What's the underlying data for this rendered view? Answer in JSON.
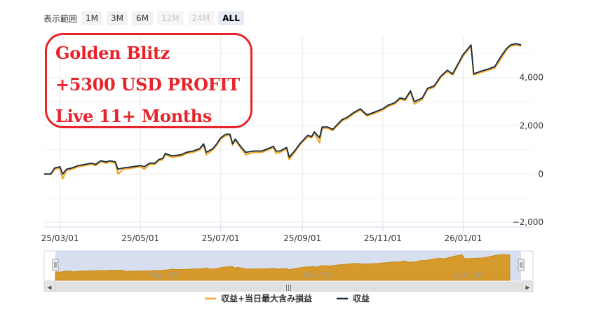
{
  "range_selector": {
    "label": "表示範囲",
    "buttons": [
      {
        "label": "1M",
        "state": "enabled"
      },
      {
        "label": "3M",
        "state": "enabled"
      },
      {
        "label": "6M",
        "state": "enabled"
      },
      {
        "label": "12M",
        "state": "disabled"
      },
      {
        "label": "24M",
        "state": "disabled"
      },
      {
        "label": "ALL",
        "state": "active"
      }
    ]
  },
  "overlay": {
    "lines": [
      "Golden Blitz",
      "+5300 USD PROFIT",
      "Live 11+ Months"
    ],
    "color": "#e8232a"
  },
  "chart_data": {
    "type": "line",
    "x_type": "date",
    "y_ticks": [
      "4,000",
      "2,000",
      "0",
      "−2,000"
    ],
    "y_tick_values": [
      4000,
      2000,
      0,
      -2000
    ],
    "ylim": [
      -2200,
      5700
    ],
    "xlim": [
      "2025-02-17",
      "2026-02-23"
    ],
    "x_ticks": [
      {
        "date": "2025-03-01",
        "label": "25/03/01"
      },
      {
        "date": "2025-05-01",
        "label": "25/05/01"
      },
      {
        "date": "2025-07-01",
        "label": "25/07/01"
      },
      {
        "date": "2025-09-01",
        "label": "25/09/01"
      },
      {
        "date": "2025-11-01",
        "label": "25/11/01"
      },
      {
        "date": "2026-01-01",
        "label": "26/01/01"
      }
    ],
    "grid": true,
    "legend_position": "bottom",
    "series": [
      {
        "name": "収益+当日最大含み損益",
        "color": "#f5a623",
        "points": [
          [
            "2025-02-17",
            0
          ],
          [
            "2025-02-22",
            0
          ],
          [
            "2025-02-25",
            200
          ],
          [
            "2025-03-01",
            250
          ],
          [
            "2025-03-03",
            -200
          ],
          [
            "2025-03-06",
            150
          ],
          [
            "2025-03-10",
            200
          ],
          [
            "2025-03-15",
            300
          ],
          [
            "2025-03-20",
            350
          ],
          [
            "2025-03-25",
            400
          ],
          [
            "2025-03-28",
            350
          ],
          [
            "2025-04-01",
            500
          ],
          [
            "2025-04-05",
            450
          ],
          [
            "2025-04-08",
            500
          ],
          [
            "2025-04-12",
            450
          ],
          [
            "2025-04-14",
            0
          ],
          [
            "2025-04-18",
            200
          ],
          [
            "2025-04-25",
            250
          ],
          [
            "2025-05-01",
            300
          ],
          [
            "2025-05-04",
            200
          ],
          [
            "2025-05-08",
            400
          ],
          [
            "2025-05-12",
            400
          ],
          [
            "2025-05-15",
            550
          ],
          [
            "2025-05-18",
            600
          ],
          [
            "2025-05-20",
            800
          ],
          [
            "2025-05-25",
            700
          ],
          [
            "2025-06-01",
            750
          ],
          [
            "2025-06-05",
            850
          ],
          [
            "2025-06-10",
            900
          ],
          [
            "2025-06-15",
            1000
          ],
          [
            "2025-06-18",
            1200
          ],
          [
            "2025-06-20",
            800
          ],
          [
            "2025-06-25",
            1000
          ],
          [
            "2025-06-28",
            1200
          ],
          [
            "2025-07-01",
            1450
          ],
          [
            "2025-07-05",
            1600
          ],
          [
            "2025-07-08",
            1600
          ],
          [
            "2025-07-10",
            1200
          ],
          [
            "2025-07-12",
            1400
          ],
          [
            "2025-07-16",
            1100
          ],
          [
            "2025-07-20",
            800
          ],
          [
            "2025-07-26",
            900
          ],
          [
            "2025-08-01",
            900
          ],
          [
            "2025-08-06",
            1000
          ],
          [
            "2025-08-10",
            1100
          ],
          [
            "2025-08-12",
            850
          ],
          [
            "2025-08-15",
            900
          ],
          [
            "2025-08-20",
            1050
          ],
          [
            "2025-08-22",
            600
          ],
          [
            "2025-08-26",
            900
          ],
          [
            "2025-08-30",
            1200
          ],
          [
            "2025-09-05",
            1550
          ],
          [
            "2025-09-08",
            1500
          ],
          [
            "2025-09-10",
            1700
          ],
          [
            "2025-09-14",
            1300
          ],
          [
            "2025-09-16",
            1900
          ],
          [
            "2025-09-20",
            1900
          ],
          [
            "2025-09-24",
            1800
          ],
          [
            "2025-10-01",
            2200
          ],
          [
            "2025-10-05",
            2300
          ],
          [
            "2025-10-10",
            2500
          ],
          [
            "2025-10-15",
            2650
          ],
          [
            "2025-10-20",
            2400
          ],
          [
            "2025-10-25",
            2500
          ],
          [
            "2025-11-01",
            2650
          ],
          [
            "2025-11-05",
            2800
          ],
          [
            "2025-11-10",
            2900
          ],
          [
            "2025-11-14",
            3100
          ],
          [
            "2025-11-18",
            3050
          ],
          [
            "2025-11-22",
            3400
          ],
          [
            "2025-11-25",
            2900
          ],
          [
            "2025-12-01",
            3100
          ],
          [
            "2025-12-05",
            3500
          ],
          [
            "2025-12-10",
            3600
          ],
          [
            "2025-12-15",
            4000
          ],
          [
            "2025-12-20",
            4250
          ],
          [
            "2025-12-24",
            4100
          ],
          [
            "2025-12-28",
            4500
          ],
          [
            "2026-01-01",
            4900
          ],
          [
            "2026-01-04",
            5100
          ],
          [
            "2026-01-07",
            5300
          ],
          [
            "2026-01-09",
            4100
          ],
          [
            "2026-01-14",
            4200
          ],
          [
            "2026-01-20",
            4300
          ],
          [
            "2026-01-25",
            4400
          ],
          [
            "2026-01-30",
            4800
          ],
          [
            "2026-02-03",
            5150
          ],
          [
            "2026-02-06",
            5300
          ],
          [
            "2026-02-10",
            5350
          ],
          [
            "2026-02-14",
            5300
          ]
        ]
      },
      {
        "name": "収益",
        "color": "#0f2b4a",
        "points": [
          [
            "2025-02-17",
            0
          ],
          [
            "2025-02-22",
            0
          ],
          [
            "2025-02-25",
            250
          ],
          [
            "2025-03-01",
            300
          ],
          [
            "2025-03-03",
            0
          ],
          [
            "2025-03-06",
            200
          ],
          [
            "2025-03-10",
            250
          ],
          [
            "2025-03-15",
            350
          ],
          [
            "2025-03-20",
            400
          ],
          [
            "2025-03-25",
            450
          ],
          [
            "2025-03-28",
            400
          ],
          [
            "2025-04-01",
            550
          ],
          [
            "2025-04-05",
            500
          ],
          [
            "2025-04-08",
            550
          ],
          [
            "2025-04-12",
            500
          ],
          [
            "2025-04-14",
            200
          ],
          [
            "2025-04-18",
            250
          ],
          [
            "2025-04-25",
            300
          ],
          [
            "2025-05-01",
            350
          ],
          [
            "2025-05-04",
            300
          ],
          [
            "2025-05-08",
            450
          ],
          [
            "2025-05-12",
            450
          ],
          [
            "2025-05-15",
            600
          ],
          [
            "2025-05-18",
            650
          ],
          [
            "2025-05-20",
            850
          ],
          [
            "2025-05-25",
            750
          ],
          [
            "2025-06-01",
            800
          ],
          [
            "2025-06-05",
            900
          ],
          [
            "2025-06-10",
            950
          ],
          [
            "2025-06-15",
            1050
          ],
          [
            "2025-06-18",
            1250
          ],
          [
            "2025-06-20",
            900
          ],
          [
            "2025-06-25",
            1050
          ],
          [
            "2025-06-28",
            1250
          ],
          [
            "2025-07-01",
            1500
          ],
          [
            "2025-07-05",
            1650
          ],
          [
            "2025-07-08",
            1650
          ],
          [
            "2025-07-10",
            1250
          ],
          [
            "2025-07-12",
            1450
          ],
          [
            "2025-07-16",
            1150
          ],
          [
            "2025-07-20",
            900
          ],
          [
            "2025-07-26",
            950
          ],
          [
            "2025-08-01",
            950
          ],
          [
            "2025-08-06",
            1050
          ],
          [
            "2025-08-10",
            1150
          ],
          [
            "2025-08-12",
            950
          ],
          [
            "2025-08-15",
            950
          ],
          [
            "2025-08-20",
            1100
          ],
          [
            "2025-08-22",
            700
          ],
          [
            "2025-08-26",
            950
          ],
          [
            "2025-08-30",
            1250
          ],
          [
            "2025-09-05",
            1600
          ],
          [
            "2025-09-08",
            1550
          ],
          [
            "2025-09-10",
            1750
          ],
          [
            "2025-09-14",
            1500
          ],
          [
            "2025-09-16",
            1950
          ],
          [
            "2025-09-20",
            1950
          ],
          [
            "2025-09-24",
            1850
          ],
          [
            "2025-10-01",
            2250
          ],
          [
            "2025-10-05",
            2350
          ],
          [
            "2025-10-10",
            2550
          ],
          [
            "2025-10-15",
            2700
          ],
          [
            "2025-10-20",
            2450
          ],
          [
            "2025-10-25",
            2550
          ],
          [
            "2025-11-01",
            2700
          ],
          [
            "2025-11-05",
            2850
          ],
          [
            "2025-11-10",
            2950
          ],
          [
            "2025-11-14",
            3150
          ],
          [
            "2025-11-18",
            3100
          ],
          [
            "2025-11-22",
            3450
          ],
          [
            "2025-11-25",
            3000
          ],
          [
            "2025-12-01",
            3150
          ],
          [
            "2025-12-05",
            3550
          ],
          [
            "2025-12-10",
            3650
          ],
          [
            "2025-12-15",
            4050
          ],
          [
            "2025-12-20",
            4300
          ],
          [
            "2025-12-24",
            4150
          ],
          [
            "2025-12-28",
            4550
          ],
          [
            "2026-01-01",
            4950
          ],
          [
            "2026-01-04",
            5150
          ],
          [
            "2026-01-07",
            5350
          ],
          [
            "2026-01-09",
            4150
          ],
          [
            "2026-01-14",
            4250
          ],
          [
            "2026-01-20",
            4350
          ],
          [
            "2026-01-25",
            4450
          ],
          [
            "2026-01-30",
            4900
          ],
          [
            "2026-02-03",
            5200
          ],
          [
            "2026-02-06",
            5350
          ],
          [
            "2026-02-10",
            5400
          ],
          [
            "2026-02-14",
            5350
          ]
        ]
      }
    ]
  },
  "navigator": {
    "labels": [
      "May '25",
      "Sep '25",
      "Jan '26"
    ],
    "label_dates": [
      "2025-05-01",
      "2025-09-01",
      "2026-01-01"
    ],
    "fill_color": "#d69a2c",
    "mask_color": "#c9d4ea"
  },
  "scrollbar": {
    "left_arrow": "◀",
    "right_arrow": "▶",
    "grip": "|||"
  }
}
